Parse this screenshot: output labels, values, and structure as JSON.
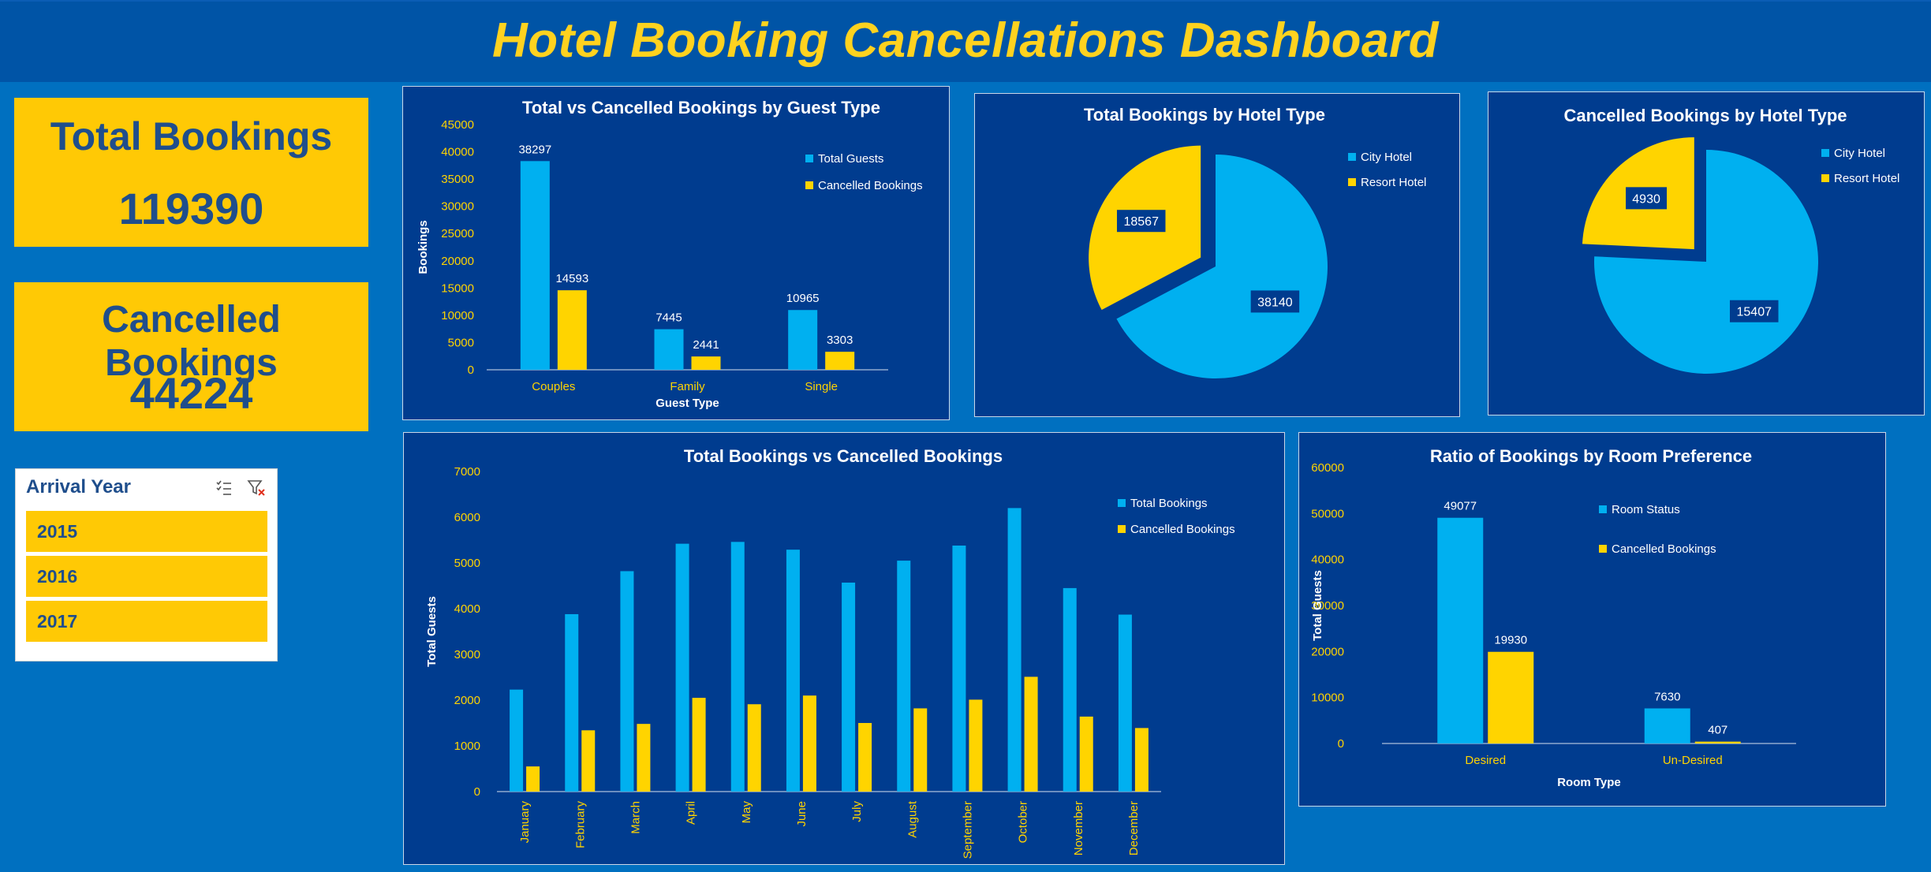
{
  "title": "Hotel Booking Cancellations Dashboard",
  "colors": {
    "background": "#0070C0",
    "panel": "#003C8F",
    "blue_series": "#00B0F0",
    "yellow_series": "#FFD400",
    "kpi": "#FFC905",
    "kpi_text": "#1F4E8C"
  },
  "kpis": {
    "total_label": "Total Bookings",
    "total_value": "119390",
    "cancelled_label": "Cancelled Bookings",
    "cancelled_value": "44224"
  },
  "slicer": {
    "title": "Arrival Year",
    "icons": [
      "multi-select-icon",
      "clear-filter-icon"
    ],
    "items": [
      "2015",
      "2016",
      "2017"
    ]
  },
  "chart_data": [
    {
      "id": "guest_type",
      "type": "bar",
      "title": "Total vs Cancelled Bookings by Guest Type",
      "xlabel": "Guest Type",
      "ylabel": "Bookings",
      "categories": [
        "Couples",
        "Family",
        "Single"
      ],
      "series": [
        {
          "name": "Total Guests",
          "values": [
            38297,
            7445,
            10965
          ]
        },
        {
          "name": "Cancelled Bookings",
          "values": [
            14593,
            2441,
            3303
          ]
        }
      ],
      "ylim": [
        0,
        45000
      ],
      "yticks": [
        0,
        5000,
        10000,
        15000,
        20000,
        25000,
        30000,
        35000,
        40000,
        45000
      ],
      "grid": false,
      "legend": "top-right"
    },
    {
      "id": "hotel_total",
      "type": "pie",
      "title": "Total Bookings by Hotel Type",
      "labels": [
        "City Hotel",
        "Resort Hotel"
      ],
      "values": [
        38140,
        18567
      ],
      "legend": "top-right"
    },
    {
      "id": "hotel_cancelled",
      "type": "pie",
      "title": "Cancelled Bookings by Hotel Type",
      "labels": [
        "City Hotel",
        "Resort Hotel"
      ],
      "values": [
        15407,
        4930
      ],
      "legend": "top-right"
    },
    {
      "id": "monthly",
      "type": "bar",
      "title": "Total Bookings vs Cancelled Bookings",
      "xlabel": "",
      "ylabel": "Total Guests",
      "categories": [
        "January",
        "February",
        "March",
        "April",
        "May",
        "June",
        "July",
        "August",
        "September",
        "October",
        "November",
        "December"
      ],
      "series": [
        {
          "name": "Total Bookings",
          "values": [
            2230,
            3880,
            4820,
            5420,
            5460,
            5290,
            4570,
            5050,
            5380,
            6200,
            4450,
            3870
          ]
        },
        {
          "name": "Cancelled Bookings",
          "values": [
            550,
            1340,
            1480,
            2050,
            1910,
            2100,
            1500,
            1820,
            2010,
            2510,
            1640,
            1390
          ]
        }
      ],
      "ylim": [
        0,
        7000
      ],
      "yticks": [
        0,
        1000,
        2000,
        3000,
        4000,
        5000,
        6000,
        7000
      ],
      "grid": false,
      "legend": "top-right"
    },
    {
      "id": "room",
      "type": "bar",
      "title": "Ratio of Bookings by Room Preference",
      "xlabel": "Room Type",
      "ylabel": "Total Guests",
      "categories": [
        "Desired",
        "Un-Desired"
      ],
      "series": [
        {
          "name": "Room Status",
          "values": [
            49077,
            7630
          ]
        },
        {
          "name": "Cancelled Bookings",
          "values": [
            19930,
            407
          ]
        }
      ],
      "ylim": [
        0,
        60000
      ],
      "yticks": [
        0,
        10000,
        20000,
        30000,
        40000,
        50000,
        60000
      ],
      "grid": false,
      "legend": "top-right"
    }
  ]
}
